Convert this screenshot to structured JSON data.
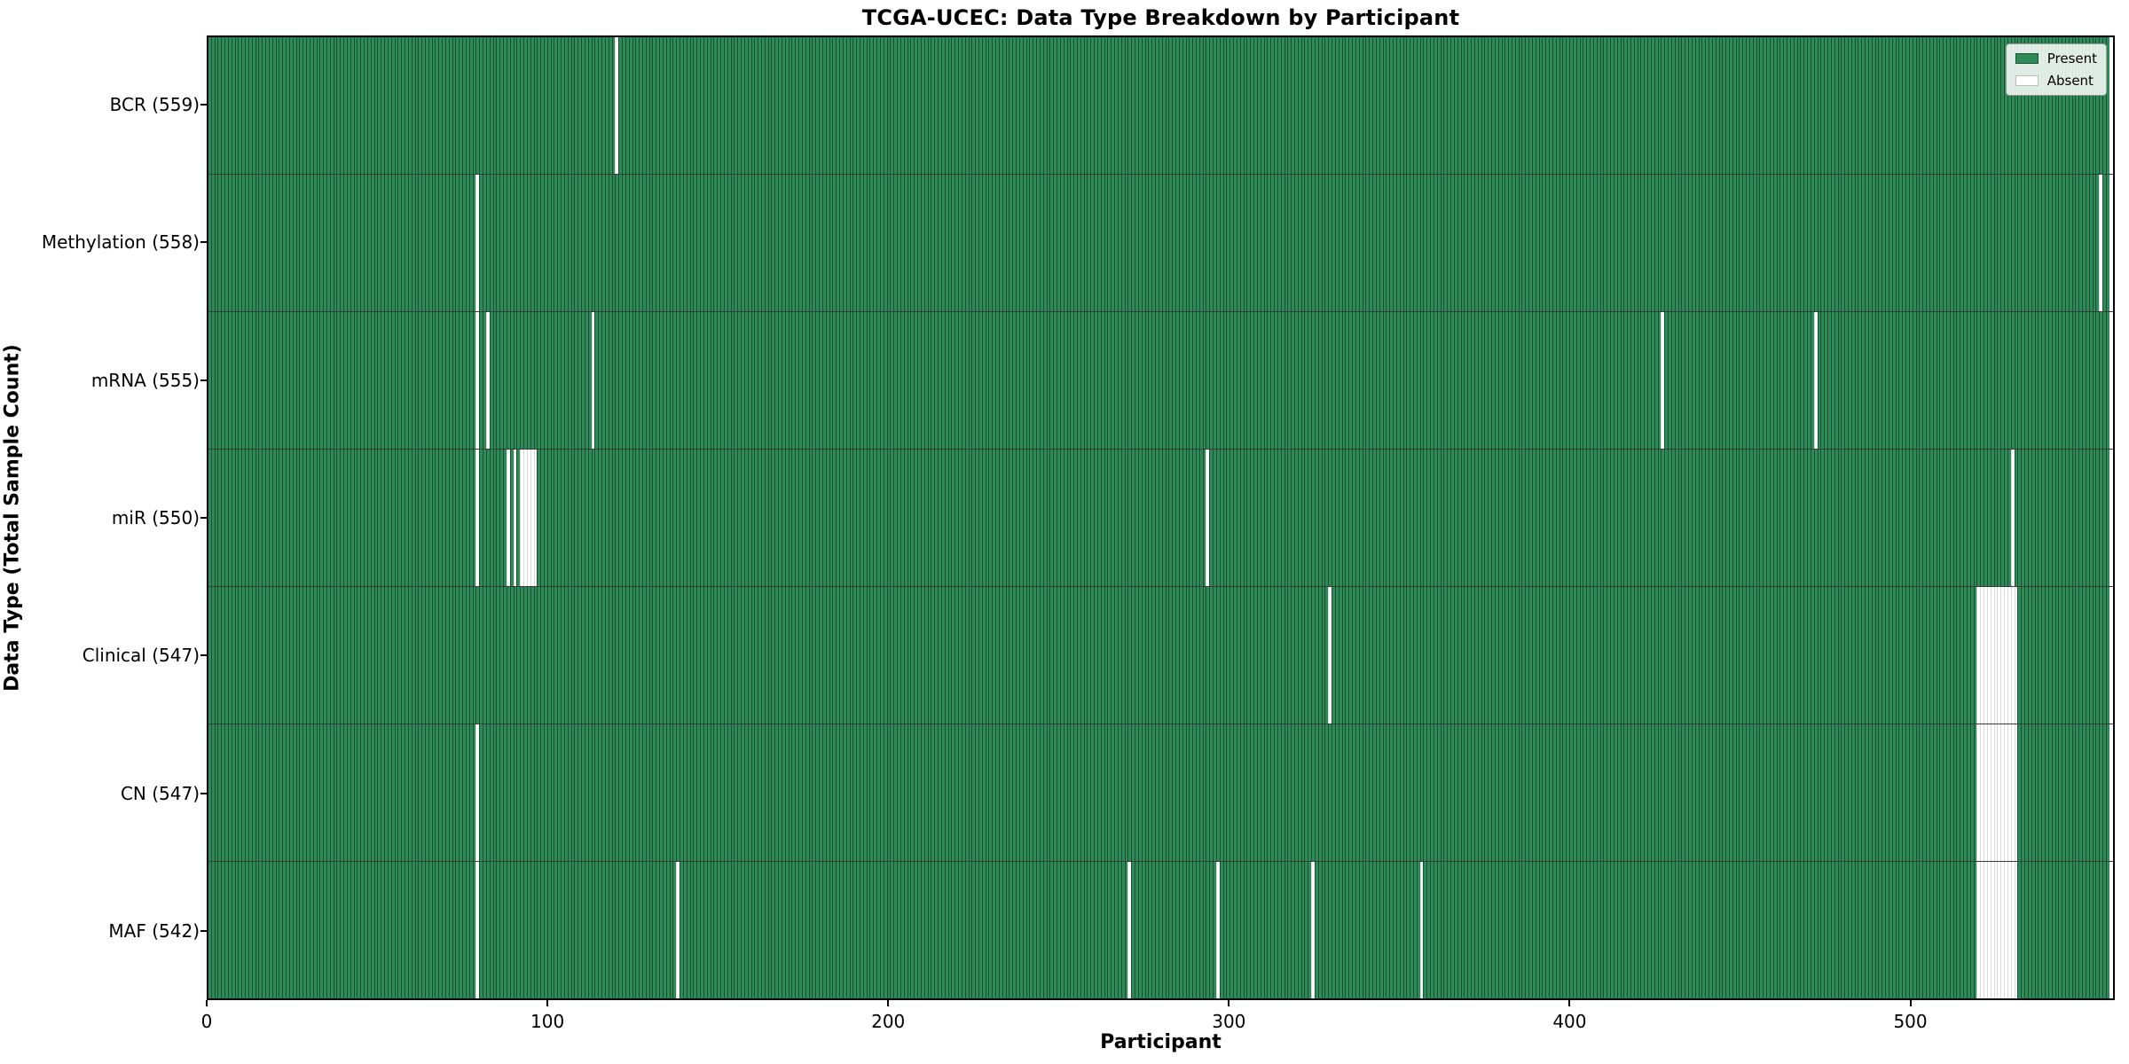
{
  "title": "TCGA-UCEC: Data Type Breakdown by Participant",
  "xlabel": "Participant",
  "ylabel": "Data Type (Total Sample Count)",
  "legend": {
    "present": "Present",
    "absent": "Absent"
  },
  "colors": {
    "present": "#2e8b57",
    "absent": "#ffffff",
    "bar_edge": "#1d5636",
    "spine": "#000000"
  },
  "x_ticks": [
    0,
    100,
    200,
    300,
    400,
    500
  ],
  "chart_data": {
    "type": "heatmap",
    "n_participants": 560,
    "x_range": [
      0,
      560
    ],
    "legend_position": "upper right",
    "grid": false,
    "rows": [
      {
        "name": "BCR",
        "label": "BCR (559)",
        "present_count": 559,
        "absent_indices": [
          120
        ]
      },
      {
        "name": "Methylation",
        "label": "Methylation (558)",
        "present_count": 558,
        "absent_indices": [
          79,
          557
        ]
      },
      {
        "name": "mRNA",
        "label": "mRNA (555)",
        "present_count": 555,
        "absent_indices": [
          79,
          82,
          113,
          428,
          473
        ]
      },
      {
        "name": "miR",
        "label": "miR (550)",
        "present_count": 550,
        "absent_indices": [
          79,
          88,
          90,
          92,
          93,
          94,
          95,
          96,
          294,
          531
        ]
      },
      {
        "name": "Clinical",
        "label": "Clinical (547)",
        "present_count": 547,
        "absent_indices": [
          330,
          521,
          522,
          523,
          524,
          525,
          526,
          527,
          528,
          529,
          530,
          531,
          532
        ]
      },
      {
        "name": "CN",
        "label": "CN (547)",
        "present_count": 547,
        "absent_indices": [
          79,
          521,
          522,
          523,
          524,
          525,
          526,
          527,
          528,
          529,
          530,
          531,
          532
        ]
      },
      {
        "name": "MAF",
        "label": "MAF (542)",
        "present_count": 542,
        "absent_indices": [
          79,
          138,
          271,
          297,
          325,
          357,
          521,
          522,
          523,
          524,
          525,
          526,
          527,
          528,
          529,
          530,
          531,
          532
        ]
      }
    ]
  }
}
